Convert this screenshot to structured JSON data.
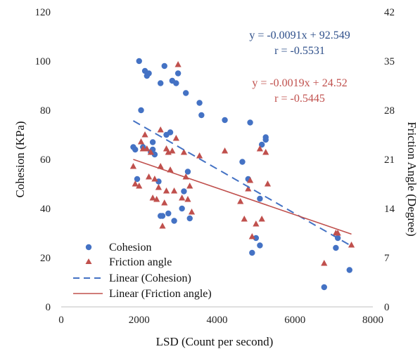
{
  "chart_data": {
    "type": "scatter",
    "xlabel": "LSD (Count per second)",
    "ylabel_left": "Cohesion (KPa)",
    "ylabel_right": "Friction Angle (Degree)",
    "xlim": [
      0,
      8000
    ],
    "ylim_left": [
      0,
      120
    ],
    "ylim_right": [
      0,
      42
    ],
    "x_ticks": [
      "0",
      "2000",
      "4000",
      "6000",
      "8000"
    ],
    "y_left_ticks": [
      "0",
      "20",
      "40",
      "60",
      "80",
      "100",
      "120"
    ],
    "y_right_ticks": [
      "0",
      "7",
      "14",
      "21",
      "28",
      "35",
      "42"
    ],
    "colors": {
      "cohesion": "#4472c4",
      "friction": "#c0504d"
    },
    "series": [
      {
        "name": "Cohesion",
        "marker": "circle",
        "axis": "left",
        "points": [
          [
            1850,
            65
          ],
          [
            1900,
            64
          ],
          [
            1950,
            52
          ],
          [
            2000,
            100
          ],
          [
            2050,
            80
          ],
          [
            2100,
            65
          ],
          [
            2150,
            96
          ],
          [
            2200,
            94
          ],
          [
            2250,
            95
          ],
          [
            2300,
            63
          ],
          [
            2350,
            67
          ],
          [
            2350,
            64
          ],
          [
            2400,
            62
          ],
          [
            2500,
            51
          ],
          [
            2550,
            91
          ],
          [
            2550,
            37
          ],
          [
            2600,
            37
          ],
          [
            2650,
            98
          ],
          [
            2700,
            70
          ],
          [
            2750,
            38
          ],
          [
            2800,
            71
          ],
          [
            2850,
            92
          ],
          [
            2900,
            35
          ],
          [
            2950,
            91
          ],
          [
            3000,
            95
          ],
          [
            3100,
            40
          ],
          [
            3150,
            47
          ],
          [
            3200,
            87
          ],
          [
            3250,
            55
          ],
          [
            3300,
            36
          ],
          [
            3550,
            83
          ],
          [
            3600,
            78
          ],
          [
            4200,
            76
          ],
          [
            4650,
            59
          ],
          [
            4800,
            52
          ],
          [
            4850,
            75
          ],
          [
            4900,
            22
          ],
          [
            5000,
            28
          ],
          [
            5100,
            25
          ],
          [
            5100,
            44
          ],
          [
            5150,
            66
          ],
          [
            5250,
            69
          ],
          [
            5250,
            68
          ],
          [
            7050,
            24
          ],
          [
            7100,
            28
          ],
          [
            7400,
            15
          ],
          [
            6750,
            8
          ]
        ]
      },
      {
        "name": "Friction angle",
        "marker": "triangle",
        "axis": "right",
        "points": [
          [
            1850,
            20
          ],
          [
            1900,
            17.5
          ],
          [
            2000,
            17.2
          ],
          [
            2050,
            23.5
          ],
          [
            2100,
            22.5
          ],
          [
            2150,
            24.5
          ],
          [
            2200,
            22.5
          ],
          [
            2250,
            18.5
          ],
          [
            2300,
            22
          ],
          [
            2350,
            15.5
          ],
          [
            2400,
            18.2
          ],
          [
            2450,
            15.3
          ],
          [
            2500,
            17
          ],
          [
            2550,
            25.2
          ],
          [
            2550,
            20
          ],
          [
            2600,
            11.5
          ],
          [
            2650,
            14.8
          ],
          [
            2700,
            22.5
          ],
          [
            2700,
            16.5
          ],
          [
            2750,
            22
          ],
          [
            2800,
            19.5
          ],
          [
            2850,
            22.2
          ],
          [
            2900,
            16.5
          ],
          [
            2950,
            24
          ],
          [
            3000,
            34.5
          ],
          [
            3100,
            15.5
          ],
          [
            3150,
            22
          ],
          [
            3200,
            18.5
          ],
          [
            3250,
            15.3
          ],
          [
            3300,
            17.2
          ],
          [
            3350,
            13.5
          ],
          [
            3550,
            21.5
          ],
          [
            4200,
            22.2
          ],
          [
            4600,
            15
          ],
          [
            4700,
            12.5
          ],
          [
            4800,
            16.8
          ],
          [
            4850,
            18
          ],
          [
            4900,
            10
          ],
          [
            5000,
            11.8
          ],
          [
            5100,
            22.5
          ],
          [
            5150,
            12.5
          ],
          [
            5250,
            22
          ],
          [
            5300,
            17.5
          ],
          [
            6750,
            6.2
          ],
          [
            7050,
            10.5
          ],
          [
            7100,
            10.5
          ],
          [
            7450,
            8.8
          ]
        ]
      }
    ],
    "trendlines": [
      {
        "name": "Linear (Cohesion)",
        "axis": "left",
        "slope": -0.0091,
        "intercept": 92.549,
        "x_range": [
          1850,
          7450
        ],
        "style": "dashed"
      },
      {
        "name": "Linear (Friction angle)",
        "axis": "right",
        "slope": -0.0019,
        "intercept": 24.52,
        "x_range": [
          1850,
          7450
        ],
        "style": "solid"
      }
    ],
    "annotations": [
      {
        "key": "coh_eq",
        "text": "y = -0.0091x + 92.549",
        "color": "#2e4f8a"
      },
      {
        "key": "coh_r",
        "text": "r = -0.5531",
        "color": "#2e4f8a"
      },
      {
        "key": "fri_eq",
        "text": "y = -0.0019x + 24.52",
        "color": "#c0504d"
      },
      {
        "key": "fri_r",
        "text": "r = -0.5445",
        "color": "#c0504d"
      }
    ],
    "legend": {
      "placement": "bottom-left",
      "entries": [
        "Cohesion",
        "Friction angle",
        "Linear (Cohesion)",
        "Linear (Friction angle)"
      ]
    },
    "grid": false
  }
}
